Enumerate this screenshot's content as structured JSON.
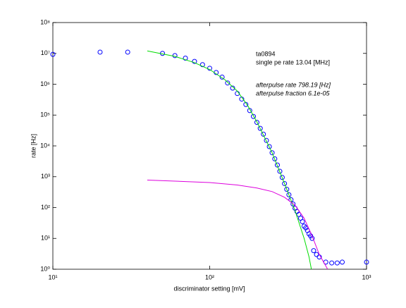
{
  "chart_data": {
    "type": "scatter",
    "xlabel": "discriminator setting [mV]",
    "ylabel": "rate [Hz]",
    "annotations": [
      "ta0894",
      "single pe rate 13.04 [MHz]",
      "afterpulse rate 798.19 [Hz]",
      "afterpulse fraction 6.1e-05"
    ],
    "xscale": "log",
    "yscale": "log",
    "xlim": [
      10,
      1000
    ],
    "ylim": [
      1,
      100000000
    ],
    "xticks": [
      {
        "value": 10,
        "label": "10¹"
      },
      {
        "value": 100,
        "label": "10²"
      },
      {
        "value": 1000,
        "label": "10³"
      }
    ],
    "yticks": [
      {
        "value": 1,
        "label": "10⁰"
      },
      {
        "value": 10,
        "label": "10¹"
      },
      {
        "value": 100,
        "label": "10²"
      },
      {
        "value": 1000,
        "label": "10³"
      },
      {
        "value": 10000,
        "label": "10⁴"
      },
      {
        "value": 100000,
        "label": "10⁵"
      },
      {
        "value": 1000000,
        "label": "10⁶"
      },
      {
        "value": 10000000,
        "label": "10⁷"
      },
      {
        "value": 100000000,
        "label": "10⁸"
      }
    ],
    "grid": false,
    "series": [
      {
        "color": "#0000ff",
        "marker": "circle",
        "x": [
          10,
          20,
          30,
          50,
          60,
          70,
          80,
          90,
          100,
          110,
          120,
          130,
          140,
          150,
          160,
          170,
          180,
          190,
          200,
          210,
          220,
          230,
          240,
          250,
          260,
          270,
          280,
          290,
          300,
          310,
          320,
          330,
          340,
          350,
          360,
          370,
          380,
          390,
          400,
          410,
          420,
          430,
          440,
          450,
          460,
          480,
          500,
          550,
          600,
          650,
          700,
          1000
        ],
        "values": [
          9300000,
          11000000,
          11000000,
          10000000,
          8500000,
          7000000,
          5500000,
          4300000,
          3300000,
          2400000,
          1700000,
          1100000,
          750000,
          500000,
          330000,
          220000,
          140000,
          90000,
          58000,
          37000,
          24000,
          15000,
          9500,
          6000,
          3800,
          2400,
          1500,
          950,
          600,
          390,
          260,
          180,
          130,
          95,
          75,
          60,
          45,
          35,
          25,
          22,
          18,
          14,
          12,
          10,
          4,
          3,
          2.5,
          1.7,
          1.6,
          1.6,
          1.7,
          1.7
        ]
      },
      {
        "color": "#00dd00",
        "marker": "line",
        "x": [
          40,
          60,
          80,
          100,
          125,
          150,
          175,
          200,
          250,
          300,
          350,
          400,
          430,
          445
        ],
        "values": [
          12000000,
          8000000,
          5000000,
          3000000,
          1400000,
          600000,
          200000,
          60000,
          6000,
          600,
          80,
          10,
          2.5,
          1
        ]
      },
      {
        "color": "#dd00dd",
        "marker": "line",
        "x": [
          40,
          100,
          150,
          200,
          250,
          300,
          350,
          400,
          450,
          500,
          540,
          565
        ],
        "values": [
          780,
          650,
          540,
          430,
          330,
          215,
          120,
          45,
          12,
          3,
          1.5,
          1
        ]
      }
    ]
  }
}
